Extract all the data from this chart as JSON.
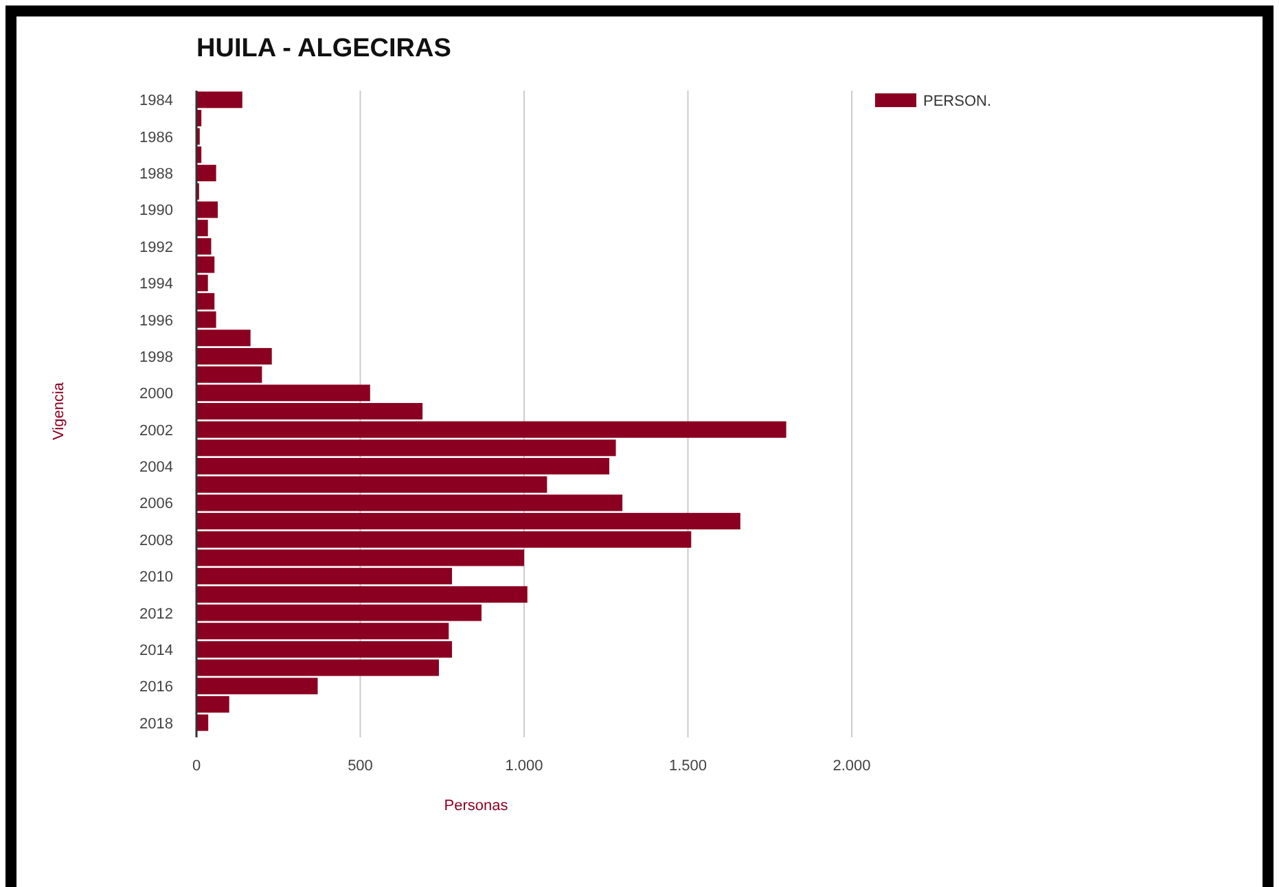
{
  "chart_data": {
    "type": "bar",
    "orientation": "horizontal",
    "title": "HUILA - ALGECIRAS",
    "xlabel": "Personas",
    "ylabel": "Vigencia",
    "categories": [
      "1984",
      null,
      "1986",
      null,
      "1988",
      null,
      "1990",
      null,
      "1992",
      null,
      "1994",
      null,
      "1996",
      null,
      "1998",
      null,
      "2000",
      null,
      "2002",
      null,
      "2004",
      null,
      "2006",
      null,
      "2008",
      null,
      "2010",
      null,
      "2012",
      null,
      "2014",
      null,
      "2016",
      null,
      "2018"
    ],
    "series": [
      {
        "name": "PERSON.",
        "color": "#8b0021",
        "values": [
          140,
          15,
          10,
          15,
          60,
          8,
          65,
          35,
          45,
          55,
          35,
          55,
          60,
          165,
          230,
          200,
          530,
          690,
          1800,
          1280,
          1260,
          1070,
          1300,
          1660,
          1510,
          1000,
          780,
          1010,
          870,
          770,
          780,
          740,
          370,
          100,
          36
        ]
      }
    ],
    "xlim": [
      0,
      2000
    ],
    "xticks": [
      0,
      500,
      {
        "value": 1000,
        "label": "1.000"
      },
      {
        "value": 1500,
        "label": "1.500"
      },
      {
        "value": 2000,
        "label": "2.000"
      }
    ],
    "grid": "x",
    "legend": "top right"
  }
}
